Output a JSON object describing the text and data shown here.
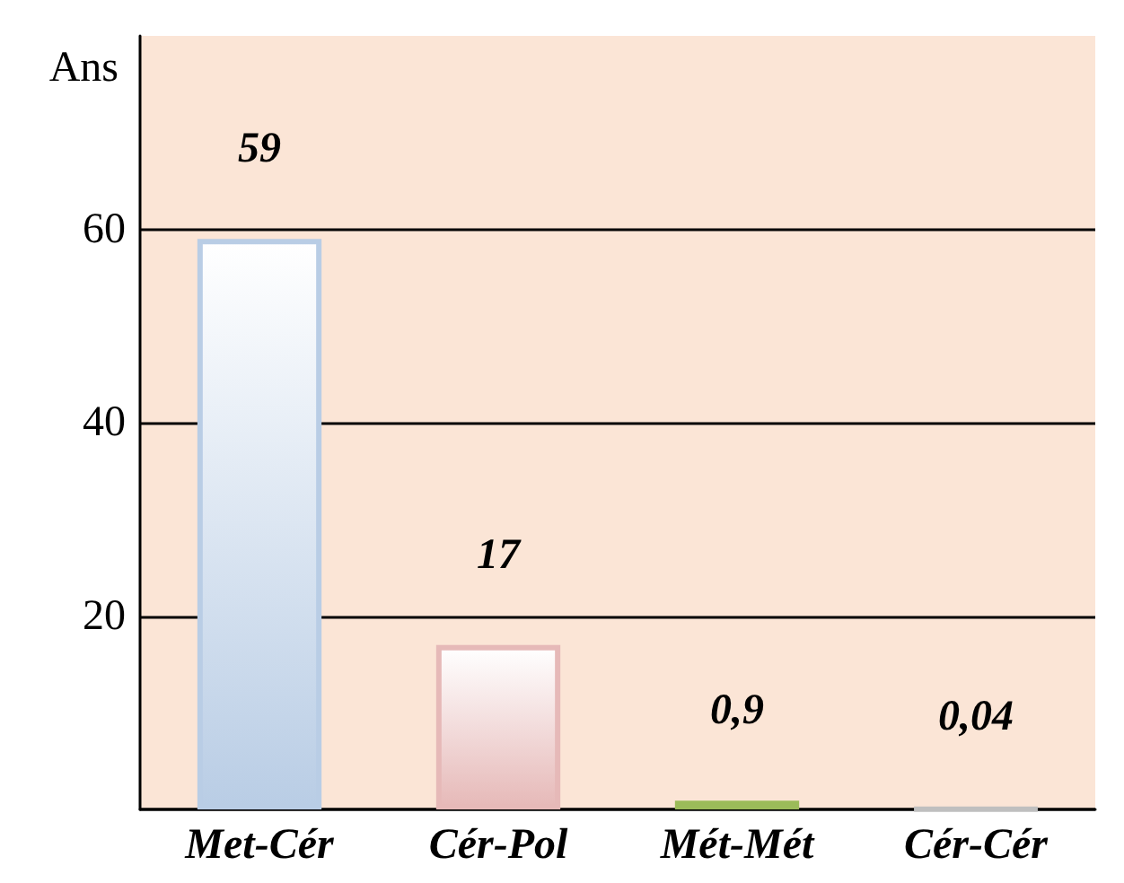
{
  "chart_data": {
    "type": "bar",
    "ylabel": "Ans",
    "categories": [
      "Met-Cér",
      "Cér-Pol",
      "Mét-Mét",
      "Cér-Cér"
    ],
    "values": [
      59,
      17,
      0.9,
      0.04
    ],
    "colors": [
      "#b9cde5",
      "#e6b9b8",
      "#9bbb59",
      "#bfbfbf"
    ],
    "value_labels": [
      "59",
      "17",
      "0,9",
      "0,04"
    ],
    "ylim": [
      0,
      80
    ],
    "yticks": [
      {
        "value": 0,
        "label": null
      },
      20,
      40,
      60
    ],
    "grid": "y"
  }
}
